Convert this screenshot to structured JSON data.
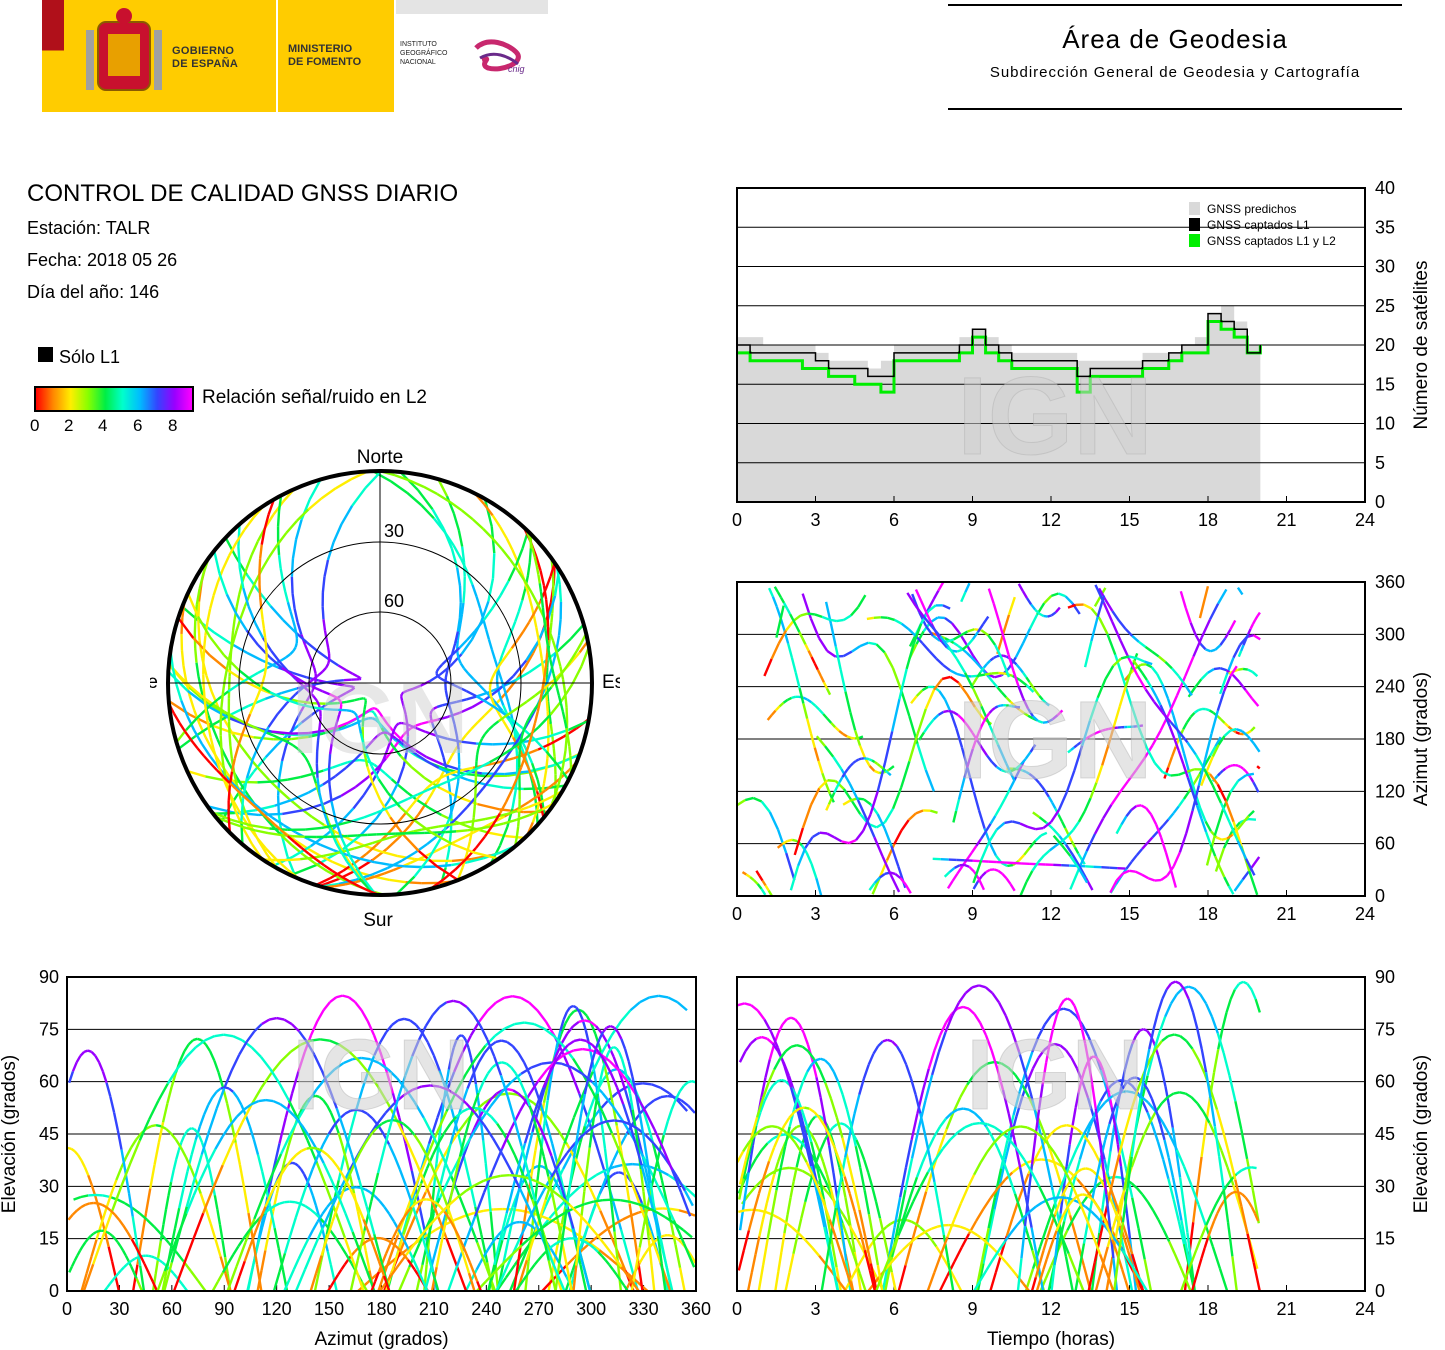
{
  "header": {
    "gov_line1": "GOBIERNO",
    "gov_line2": "DE ESPAÑA",
    "ministry_line1": "MINISTERIO",
    "ministry_line2": "DE FOMENTO",
    "inst_line1": "INSTITUTO",
    "inst_line2": "GEOGRÁFICO",
    "inst_line3": "NACIONAL",
    "cnig_logo": "cnig",
    "area_title": "Área de Geodesia",
    "area_subtitle": "Subdirección General de Geodesia y Cartografía"
  },
  "info": {
    "title": "CONTROL DE CALIDAD GNSS DIARIO",
    "station": "Estación: TALR",
    "date": "Fecha: 2018 05 26",
    "doy": "Día del año: 146"
  },
  "legend": {
    "l1_only": "Sólo L1",
    "snr_label": "Relación señal/ruido en L2",
    "snr_ticks": [
      "0",
      "2",
      "4",
      "6",
      "8"
    ],
    "l1_color": "#000000"
  },
  "watermark": "IGN",
  "colors": {
    "predicted": "#d9d9d9",
    "l1": "#000000",
    "l1l2": "#00ee00",
    "snr_scale": [
      "#ff0000",
      "#ff8800",
      "#ffee00",
      "#88ff00",
      "#00ee44",
      "#00ffcc",
      "#00bbff",
      "#3344ff",
      "#9900ff",
      "#ff00ff"
    ]
  },
  "chart_data": [
    {
      "id": "sky",
      "type": "polar-skyplot",
      "directions": {
        "north": "Norte",
        "south": "Sur",
        "east": "Este",
        "west": "Oeste"
      },
      "elevation_rings": [
        0,
        30,
        60
      ],
      "ring_labels": [
        "30",
        "60"
      ],
      "note_tracks": "satellite tracks coloured by L2 SNR; no coverage near north above 30 deg"
    },
    {
      "id": "count",
      "type": "line",
      "ylabel": "Número de satélites",
      "xlim": [
        0,
        24
      ],
      "ylim": [
        0,
        40
      ],
      "x_ticks": [
        "0",
        "3",
        "6",
        "9",
        "12",
        "15",
        "18",
        "21",
        "24"
      ],
      "y_ticks": [
        "0",
        "5",
        "10",
        "15",
        "20",
        "25",
        "30",
        "35",
        "40"
      ],
      "legend": [
        "GNSS predichos",
        "GNSS captados L1",
        "GNSS captados L1 y L2"
      ],
      "legend_position": "top-right",
      "x": [
        0,
        0.5,
        1,
        1.5,
        2,
        2.5,
        3,
        3.5,
        4,
        4.5,
        5,
        5.5,
        6,
        6.5,
        7,
        7.5,
        8,
        8.5,
        9,
        9.5,
        10,
        10.5,
        11,
        11.5,
        12,
        12.5,
        13,
        13.5,
        14,
        14.5,
        15,
        15.5,
        16,
        16.5,
        17,
        17.5,
        18,
        18.5,
        19,
        19.5,
        20
      ],
      "series": [
        {
          "name": "GNSS predichos",
          "values": [
            21,
            21,
            20,
            20,
            20,
            20,
            19,
            18,
            18,
            18,
            17,
            18,
            20,
            20,
            20,
            20,
            20,
            21,
            22,
            21,
            20,
            19,
            19,
            19,
            19,
            19,
            18,
            18,
            18,
            18,
            18,
            19,
            19,
            19,
            20,
            21,
            24,
            25,
            23,
            20,
            20
          ]
        },
        {
          "name": "GNSS captados L1",
          "values": [
            20,
            19,
            19,
            19,
            19,
            19,
            18,
            17,
            17,
            17,
            16,
            16,
            19,
            19,
            19,
            19,
            19,
            20,
            22,
            20,
            19,
            18,
            18,
            18,
            18,
            18,
            16,
            17,
            17,
            17,
            17,
            18,
            18,
            19,
            20,
            20,
            24,
            23,
            22,
            19,
            20
          ]
        },
        {
          "name": "GNSS captados L1 y L2",
          "values": [
            19,
            18,
            18,
            18,
            18,
            17,
            17,
            16,
            16,
            15,
            15,
            14,
            18,
            18,
            18,
            18,
            18,
            19,
            21,
            19,
            18,
            17,
            17,
            17,
            17,
            17,
            14,
            16,
            16,
            16,
            16,
            17,
            17,
            18,
            19,
            19,
            23,
            22,
            21,
            19,
            20
          ]
        }
      ]
    },
    {
      "id": "azimuth",
      "type": "scatter",
      "ylabel": "Azimut (grados)",
      "xlim": [
        0,
        24
      ],
      "ylim": [
        0,
        360
      ],
      "x_ticks": [
        "0",
        "3",
        "6",
        "9",
        "12",
        "15",
        "18",
        "21",
        "24"
      ],
      "y_ticks": [
        "0",
        "60",
        "120",
        "180",
        "240",
        "300",
        "360"
      ]
    },
    {
      "id": "elev_az",
      "type": "scatter",
      "xlabel": "Azimut (grados)",
      "ylabel": "Elevación (grados)",
      "xlim": [
        0,
        360
      ],
      "ylim": [
        0,
        90
      ],
      "x_ticks": [
        "0",
        "30",
        "60",
        "90",
        "120",
        "150",
        "180",
        "210",
        "240",
        "270",
        "300",
        "330",
        "360"
      ],
      "y_ticks": [
        "0",
        "15",
        "30",
        "45",
        "60",
        "75",
        "90"
      ]
    },
    {
      "id": "elev_time",
      "type": "scatter",
      "xlabel": "Tiempo (horas)",
      "ylabel": "Elevación (grados)",
      "xlim": [
        0,
        24
      ],
      "ylim": [
        0,
        90
      ],
      "x_ticks": [
        "0",
        "3",
        "6",
        "9",
        "12",
        "15",
        "18",
        "21",
        "24"
      ],
      "y_ticks": [
        "0",
        "15",
        "30",
        "45",
        "60",
        "75",
        "90"
      ]
    }
  ]
}
